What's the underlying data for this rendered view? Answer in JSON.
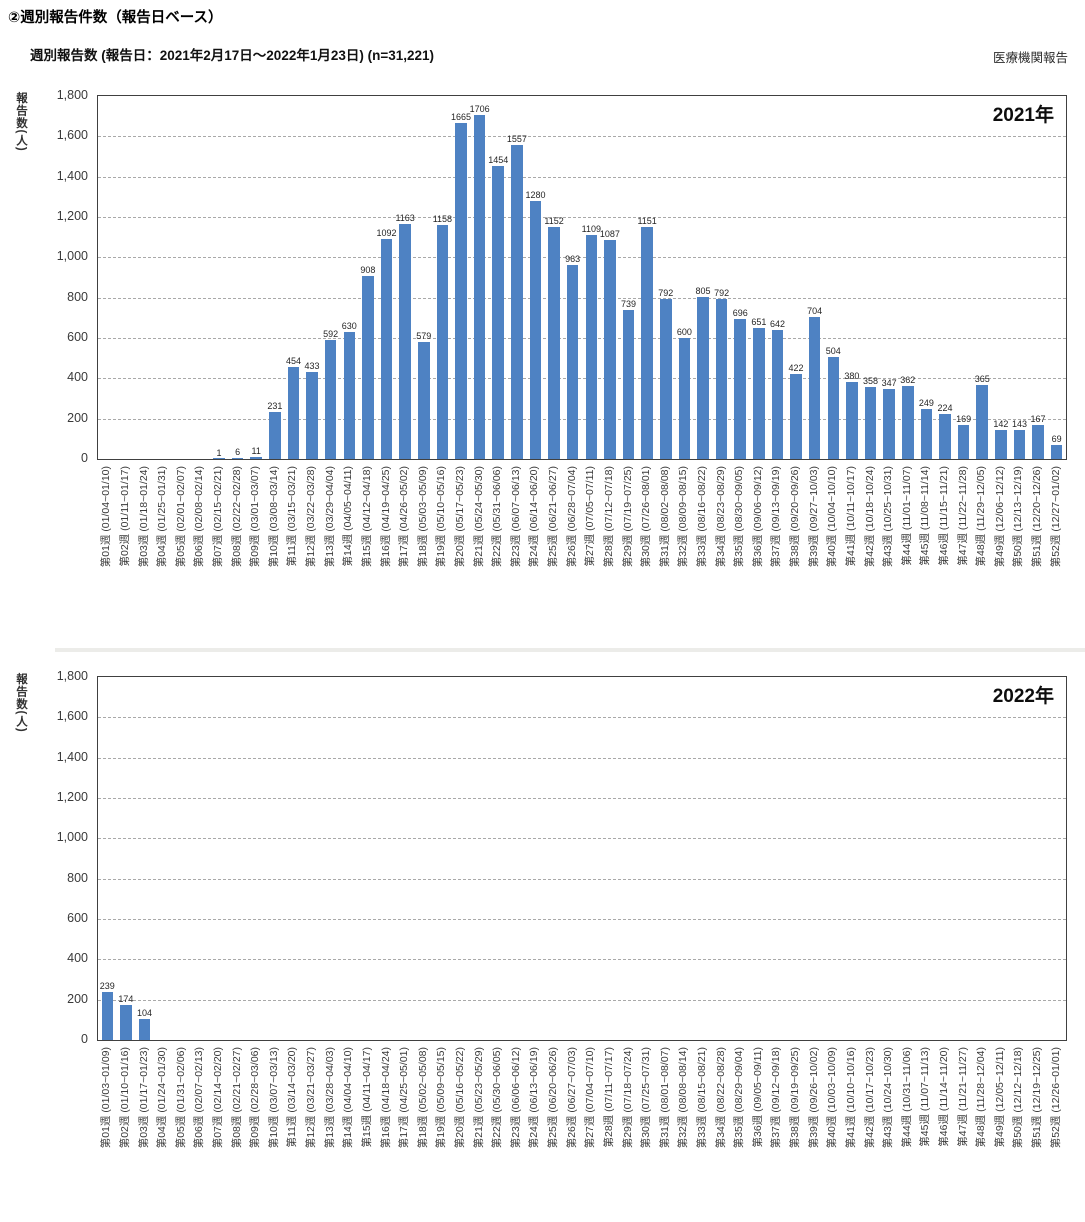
{
  "page": {
    "heading": "②週別報告件数（報告日ベース）",
    "subtitle": "週別報告数 (報告日：2021年2月17日～2022年1月23日)  (n=31,221)",
    "source_label": "医療機関報告"
  },
  "chart_data": [
    {
      "type": "bar",
      "title": "2021年",
      "ylabel": "報告数(人)",
      "ylim": [
        0,
        1800
      ],
      "ytick_interval": 200,
      "yticks": [
        "0",
        "200",
        "400",
        "600",
        "800",
        "1,000",
        "1,200",
        "1,400",
        "1,600",
        "1,800"
      ],
      "grid": "horizontal-dashed",
      "legend": "none",
      "bar_color": "#4E82C3",
      "categories": [
        "第01週 (01/04~01/10)",
        "第02週 (01/11~01/17)",
        "第03週 (01/18~01/24)",
        "第04週 (01/25~01/31)",
        "第05週 (02/01~02/07)",
        "第06週 (02/08~02/14)",
        "第07週 (02/15~02/21)",
        "第08週 (02/22~02/28)",
        "第09週 (03/01~03/07)",
        "第10週 (03/08~03/14)",
        "第11週 (03/15~03/21)",
        "第12週 (03/22~03/28)",
        "第13週 (03/29~04/04)",
        "第14週 (04/05~04/11)",
        "第15週 (04/12~04/18)",
        "第16週 (04/19~04/25)",
        "第17週 (04/26~05/02)",
        "第18週 (05/03~05/09)",
        "第19週 (05/10~05/16)",
        "第20週 (05/17~05/23)",
        "第21週 (05/24~05/30)",
        "第22週 (05/31~06/06)",
        "第23週 (06/07~06/13)",
        "第24週 (06/14~06/20)",
        "第25週 (06/21~06/27)",
        "第26週 (06/28~07/04)",
        "第27週 (07/05~07/11)",
        "第28週 (07/12~07/18)",
        "第29週 (07/19~07/25)",
        "第30週 (07/26~08/01)",
        "第31週 (08/02~08/08)",
        "第32週 (08/09~08/15)",
        "第33週 (08/16~08/22)",
        "第34週 (08/23~08/29)",
        "第35週 (08/30~09/05)",
        "第36週 (09/06~09/12)",
        "第37週 (09/13~09/19)",
        "第38週 (09/20~09/26)",
        "第39週 (09/27~10/03)",
        "第40週 (10/04~10/10)",
        "第41週 (10/11~10/17)",
        "第42週 (10/18~10/24)",
        "第43週 (10/25~10/31)",
        "第44週 (11/01~11/07)",
        "第45週 (11/08~11/14)",
        "第46週 (11/15~11/21)",
        "第47週 (11/22~11/28)",
        "第48週 (11/29~12/05)",
        "第49週 (12/06~12/12)",
        "第50週 (12/13~12/19)",
        "第51週 (12/20~12/26)",
        "第52週 (12/27~01/02)"
      ],
      "values": [
        0,
        0,
        0,
        0,
        0,
        0,
        1,
        6,
        11,
        231,
        454,
        433,
        592,
        630,
        908,
        1092,
        1163,
        579,
        1158,
        1665,
        1706,
        1454,
        1557,
        1280,
        1152,
        963,
        1109,
        1087,
        739,
        1151,
        792,
        600,
        805,
        792,
        696,
        651,
        642,
        422,
        704,
        504,
        380,
        358,
        347,
        362,
        249,
        224,
        169,
        365,
        142,
        143,
        167,
        69
      ]
    },
    {
      "type": "bar",
      "title": "2022年",
      "ylabel": "報告数(人)",
      "ylim": [
        0,
        1800
      ],
      "ytick_interval": 200,
      "yticks": [
        "0",
        "200",
        "400",
        "600",
        "800",
        "1,000",
        "1,200",
        "1,400",
        "1,600",
        "1,800"
      ],
      "grid": "horizontal-dashed",
      "legend": "none",
      "bar_color": "#4E82C3",
      "categories": [
        "第01週 (01/03~01/09)",
        "第02週 (01/10~01/16)",
        "第03週 (01/17~01/23)",
        "第04週 (01/24~01/30)",
        "第05週 (01/31~02/06)",
        "第06週 (02/07~02/13)",
        "第07週 (02/14~02/20)",
        "第08週 (02/21~02/27)",
        "第09週 (02/28~03/06)",
        "第10週 (03/07~03/13)",
        "第11週 (03/14~03/20)",
        "第12週 (03/21~03/27)",
        "第13週 (03/28~04/03)",
        "第14週 (04/04~04/10)",
        "第15週 (04/11~04/17)",
        "第16週 (04/18~04/24)",
        "第17週 (04/25~05/01)",
        "第18週 (05/02~05/08)",
        "第19週 (05/09~05/15)",
        "第20週 (05/16~05/22)",
        "第21週 (05/23~05/29)",
        "第22週 (05/30~06/05)",
        "第23週 (06/06~06/12)",
        "第24週 (06/13~06/19)",
        "第25週 (06/20~06/26)",
        "第26週 (06/27~07/03)",
        "第27週 (07/04~07/10)",
        "第28週 (07/11~07/17)",
        "第29週 (07/18~07/24)",
        "第30週 (07/25~07/31)",
        "第31週 (08/01~08/07)",
        "第32週 (08/08~08/14)",
        "第33週 (08/15~08/21)",
        "第34週 (08/22~08/28)",
        "第35週 (08/29~09/04)",
        "第36週 (09/05~09/11)",
        "第37週 (09/12~09/18)",
        "第38週 (09/19~09/25)",
        "第39週 (09/26~10/02)",
        "第40週 (10/03~10/09)",
        "第41週 (10/10~10/16)",
        "第42週 (10/17~10/23)",
        "第43週 (10/24~10/30)",
        "第44週 (10/31~11/06)",
        "第45週 (11/07~11/13)",
        "第46週 (11/14~11/20)",
        "第47週 (11/21~11/27)",
        "第48週 (11/28~12/04)",
        "第49週 (12/05~12/11)",
        "第50週 (12/12~12/18)",
        "第51週 (12/19~12/25)",
        "第52週 (12/26~01/01)"
      ],
      "values": [
        239,
        174,
        104,
        0,
        0,
        0,
        0,
        0,
        0,
        0,
        0,
        0,
        0,
        0,
        0,
        0,
        0,
        0,
        0,
        0,
        0,
        0,
        0,
        0,
        0,
        0,
        0,
        0,
        0,
        0,
        0,
        0,
        0,
        0,
        0,
        0,
        0,
        0,
        0,
        0,
        0,
        0,
        0,
        0,
        0,
        0,
        0,
        0,
        0,
        0,
        0,
        0
      ]
    }
  ]
}
